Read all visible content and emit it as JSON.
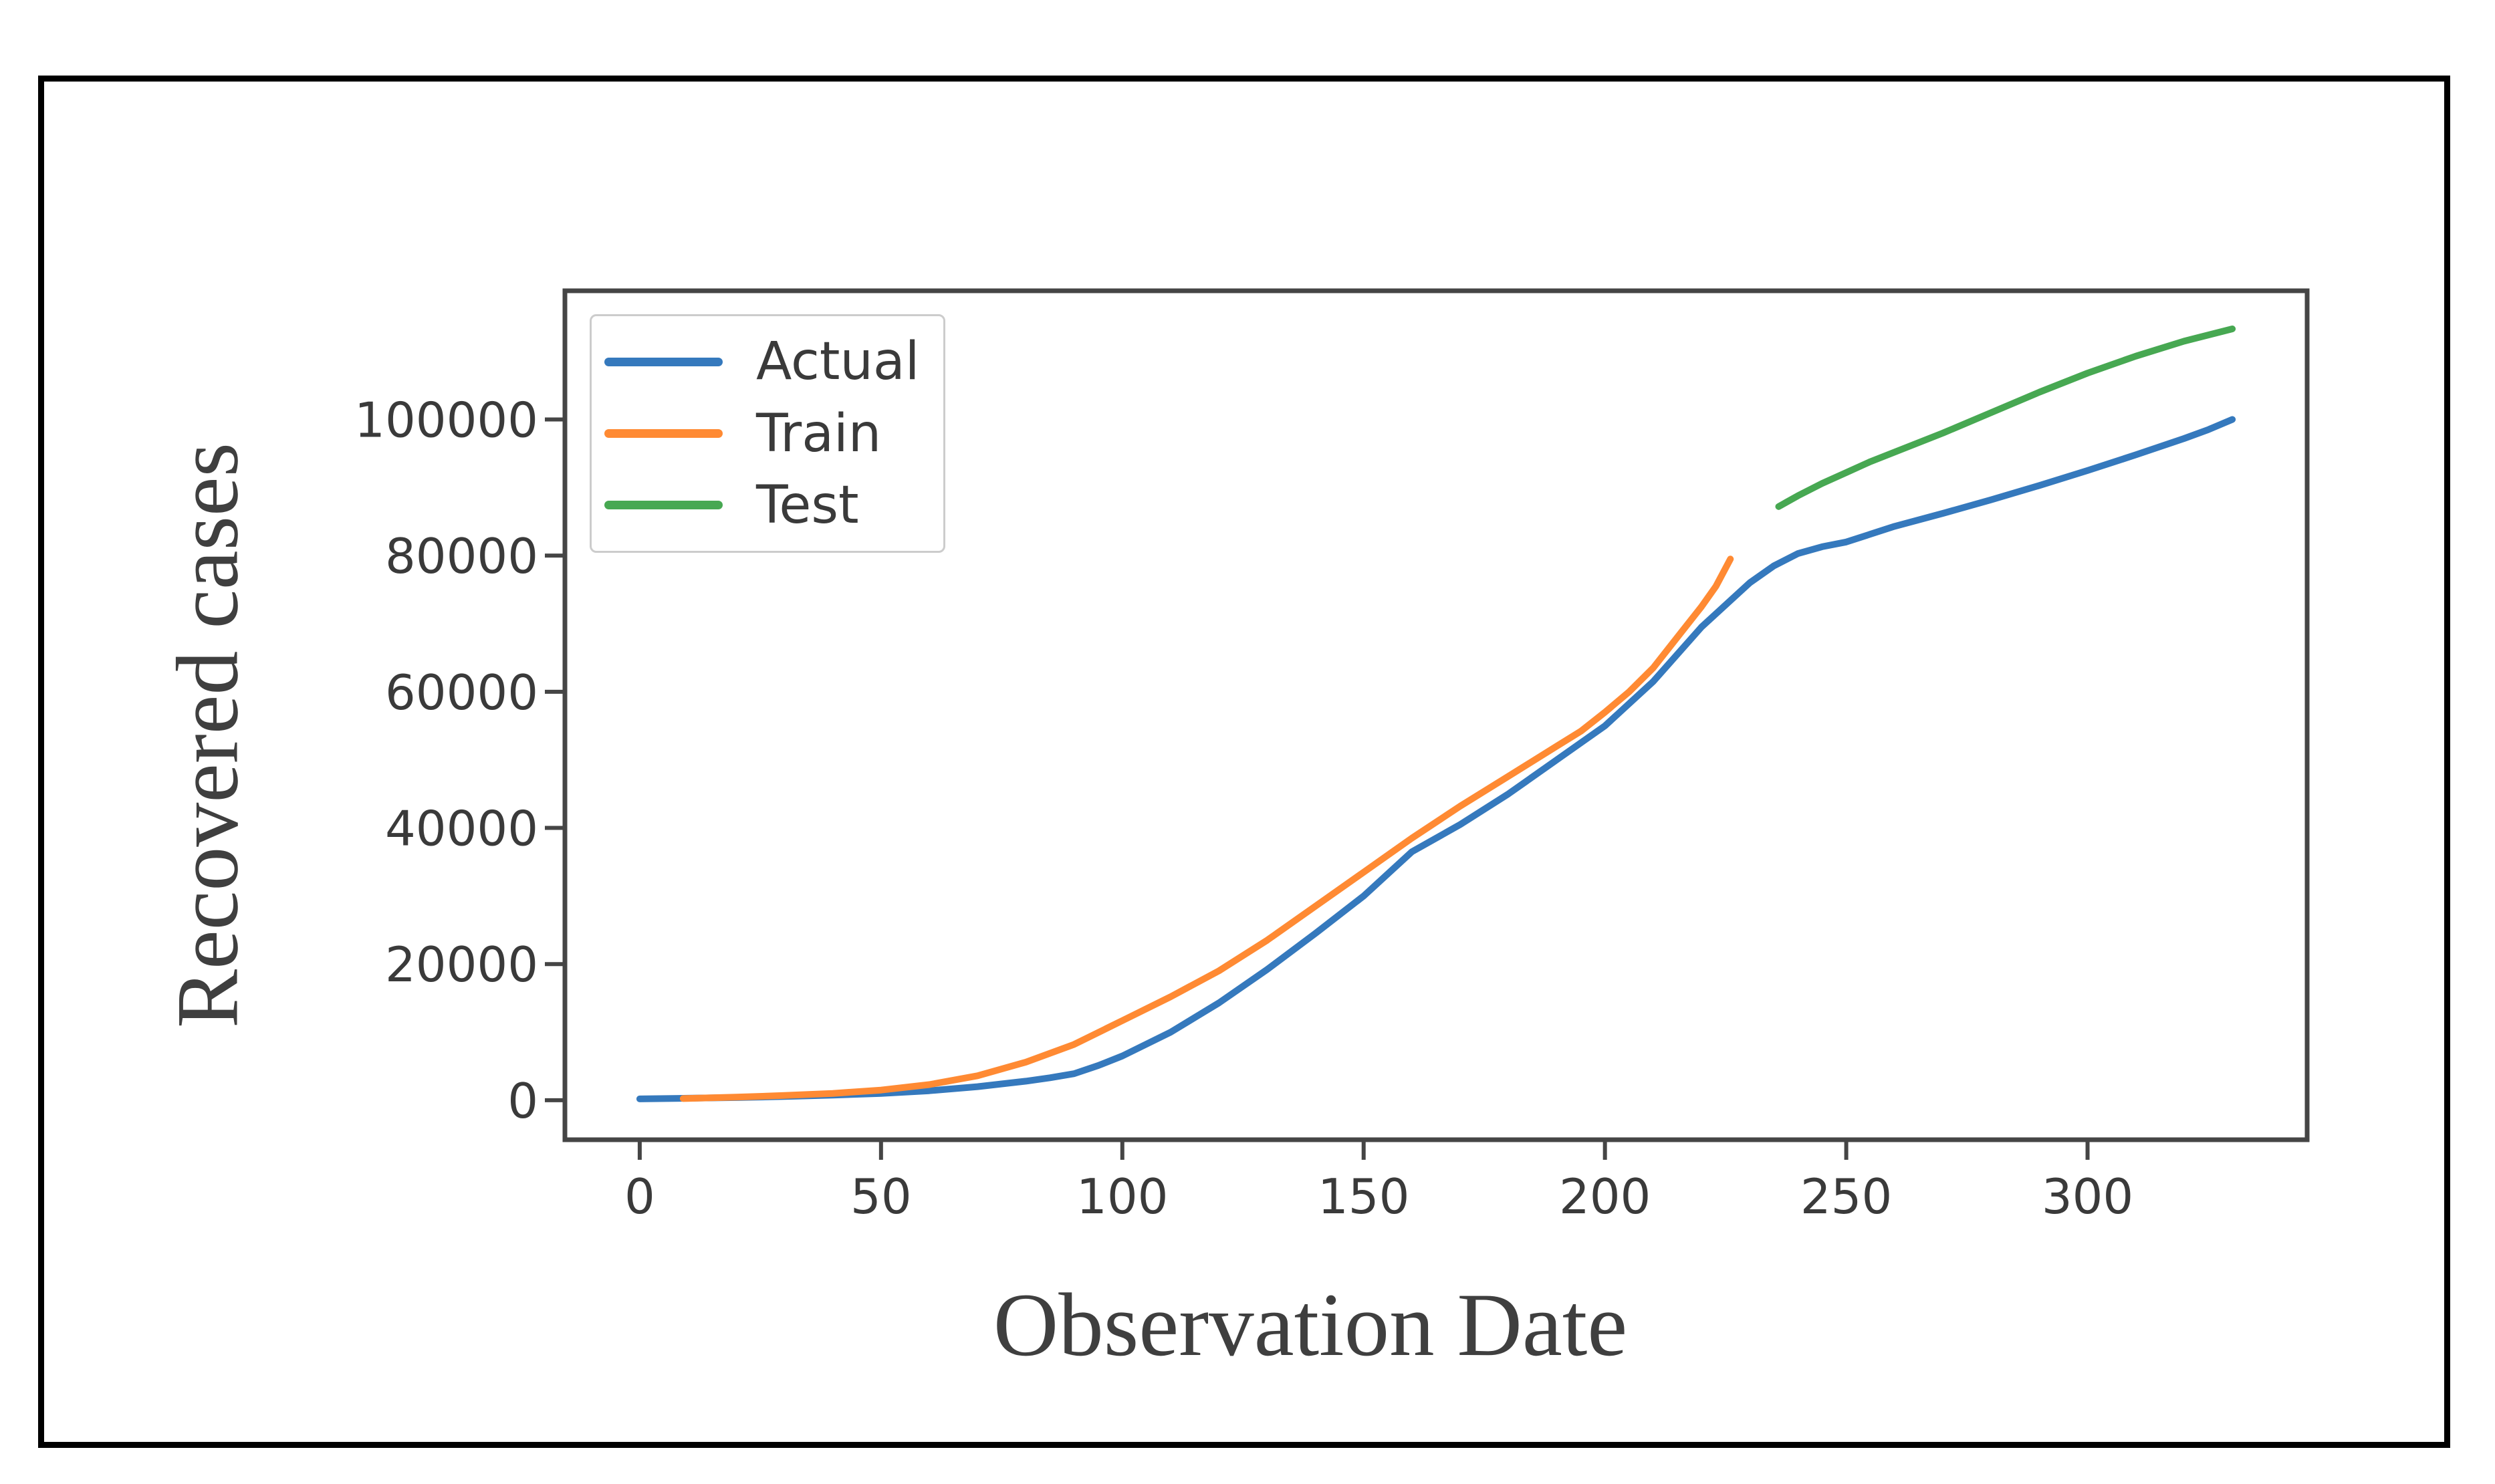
{
  "figure": {
    "background": "#ffffff",
    "frame_color": "#000000"
  },
  "chart_data": {
    "type": "line",
    "title": "",
    "xlabel": "Observation Date",
    "ylabel": "Recovered cases",
    "xlim": [
      -15.5,
      345.5
    ],
    "ylim": [
      -5800,
      118900
    ],
    "x_ticks": [
      "0",
      "50",
      "100",
      "150",
      "200",
      "250",
      "300"
    ],
    "x_tick_values": [
      0,
      50,
      100,
      150,
      200,
      250,
      300
    ],
    "y_ticks": [
      "0",
      "20000",
      "40000",
      "60000",
      "80000",
      "100000"
    ],
    "y_tick_values": [
      0,
      20000,
      40000,
      60000,
      80000,
      100000
    ],
    "grid": false,
    "legend_position": "upper-left",
    "series": [
      {
        "name": "Actual",
        "color": "#3579bd",
        "x": [
          0,
          10,
          20,
          30,
          40,
          50,
          60,
          70,
          80,
          85,
          90,
          95,
          100,
          110,
          120,
          130,
          140,
          150,
          160,
          170,
          180,
          190,
          200,
          210,
          220,
          230,
          235,
          240,
          245,
          250,
          260,
          270,
          280,
          290,
          300,
          310,
          320,
          325,
          330
        ],
        "y": [
          200,
          300,
          400,
          550,
          750,
          1000,
          1400,
          2000,
          2800,
          3300,
          3900,
          5100,
          6500,
          10000,
          14300,
          19200,
          24500,
          30000,
          36500,
          40500,
          45000,
          50000,
          55000,
          61500,
          69500,
          76000,
          78500,
          80300,
          81300,
          82000,
          84300,
          86200,
          88200,
          90300,
          92500,
          94800,
          97200,
          98500,
          100000
        ]
      },
      {
        "name": "Train",
        "color": "#ff8a33",
        "x": [
          9,
          20,
          30,
          40,
          50,
          60,
          70,
          80,
          90,
          100,
          110,
          120,
          130,
          140,
          150,
          160,
          170,
          180,
          190,
          195,
          200,
          205,
          210,
          215,
          220,
          223,
          226
        ],
        "y": [
          250,
          450,
          700,
          1000,
          1500,
          2300,
          3600,
          5600,
          8200,
          11700,
          15200,
          19000,
          23500,
          28500,
          33500,
          38500,
          43200,
          47600,
          52000,
          54200,
          57000,
          60000,
          63500,
          68000,
          72500,
          75500,
          79500
        ]
      },
      {
        "name": "Test",
        "color": "#47a852",
        "x": [
          236,
          240,
          245,
          250,
          255,
          260,
          270,
          280,
          290,
          300,
          310,
          320,
          330
        ],
        "y": [
          87200,
          88800,
          90600,
          92200,
          93800,
          95200,
          98000,
          101000,
          104000,
          106800,
          109300,
          111500,
          113300
        ]
      }
    ],
    "styles": {
      "spine_color": "#454545",
      "tick_color": "#454545",
      "tick_label_color": "#3a3a3a",
      "line_width": 10
    }
  }
}
